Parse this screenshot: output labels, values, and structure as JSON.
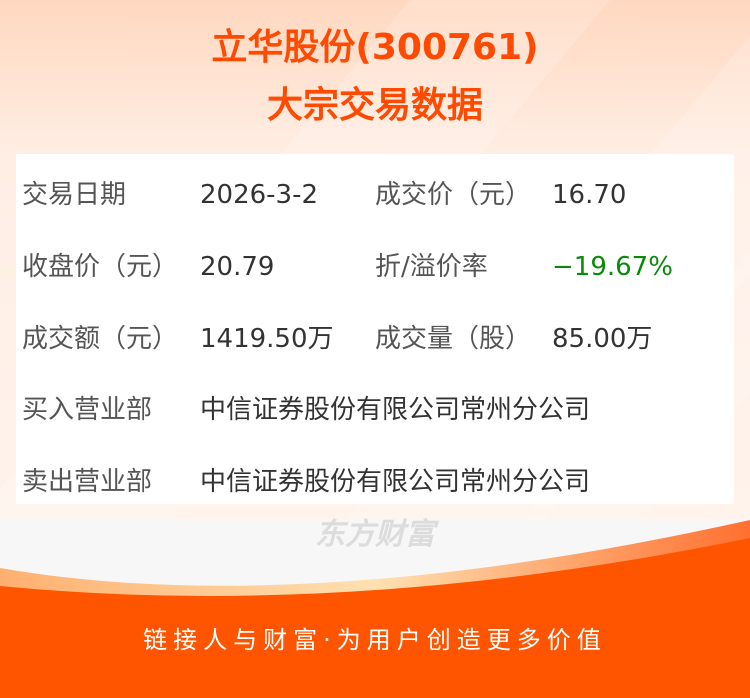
{
  "header": {
    "title": "立华股份(300761)",
    "subtitle": "大宗交易数据"
  },
  "watermark": "东方财富",
  "rows": [
    {
      "label1": "交易日期",
      "value1": "2026-3-2",
      "label2": "成交价（元）",
      "value2": "16.70"
    },
    {
      "label1": "收盘价（元）",
      "value1": "20.79",
      "label2": "折/溢价率",
      "value2": "−19.67%"
    },
    {
      "label1": "成交额（元）",
      "value1": "1419.50万",
      "label2": "成交量（股）",
      "value2": "85.00万"
    },
    {
      "label1": "买入营业部",
      "value1": "中信证券股份有限公司常州分公司"
    },
    {
      "label1": "卖出营业部",
      "value1": "中信证券股份有限公司常州分公司"
    }
  ],
  "footer": {
    "slogan": "链接人与财富·为用户创造更多价值"
  },
  "colors": {
    "accent": "#ff5500",
    "discount": "#0a8a0a"
  }
}
